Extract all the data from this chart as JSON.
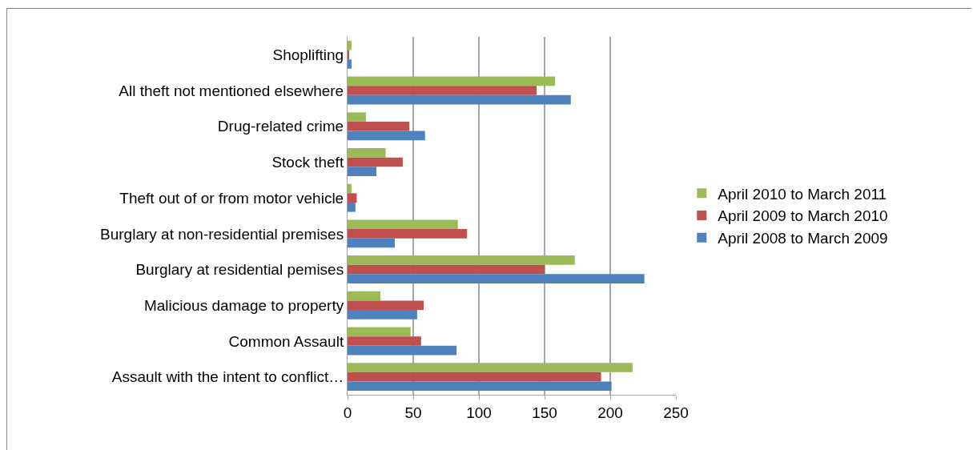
{
  "chart_data": {
    "type": "bar",
    "orientation": "horizontal",
    "categories": [
      "Shoplifting",
      "All theft not mentioned elsewhere",
      "Drug-related crime",
      "Stock theft",
      "Theft out of or from motor vehicle",
      "Burglary at non-residential premises",
      "Burglary at residential pemises",
      "Malicious damage to property",
      "Common Assault",
      "Assault with the intent to conflict…"
    ],
    "series": [
      {
        "name": "April 2010 to March 2011",
        "color": "#9bbb59",
        "values": [
          3,
          158,
          14,
          29,
          3,
          84,
          173,
          25,
          48,
          217
        ]
      },
      {
        "name": "April 2009 to March 2010",
        "color": "#c0504d",
        "values": [
          1,
          144,
          47,
          42,
          7,
          91,
          150,
          58,
          56,
          193
        ]
      },
      {
        "name": "April 2008 to March 2009",
        "color": "#4f81bd",
        "values": [
          3,
          170,
          59,
          22,
          6,
          36,
          226,
          53,
          83,
          201
        ]
      }
    ],
    "xlim": [
      0,
      250
    ],
    "xticks": [
      0,
      50,
      100,
      150,
      200,
      250
    ],
    "grid": "x",
    "legend": "right"
  }
}
